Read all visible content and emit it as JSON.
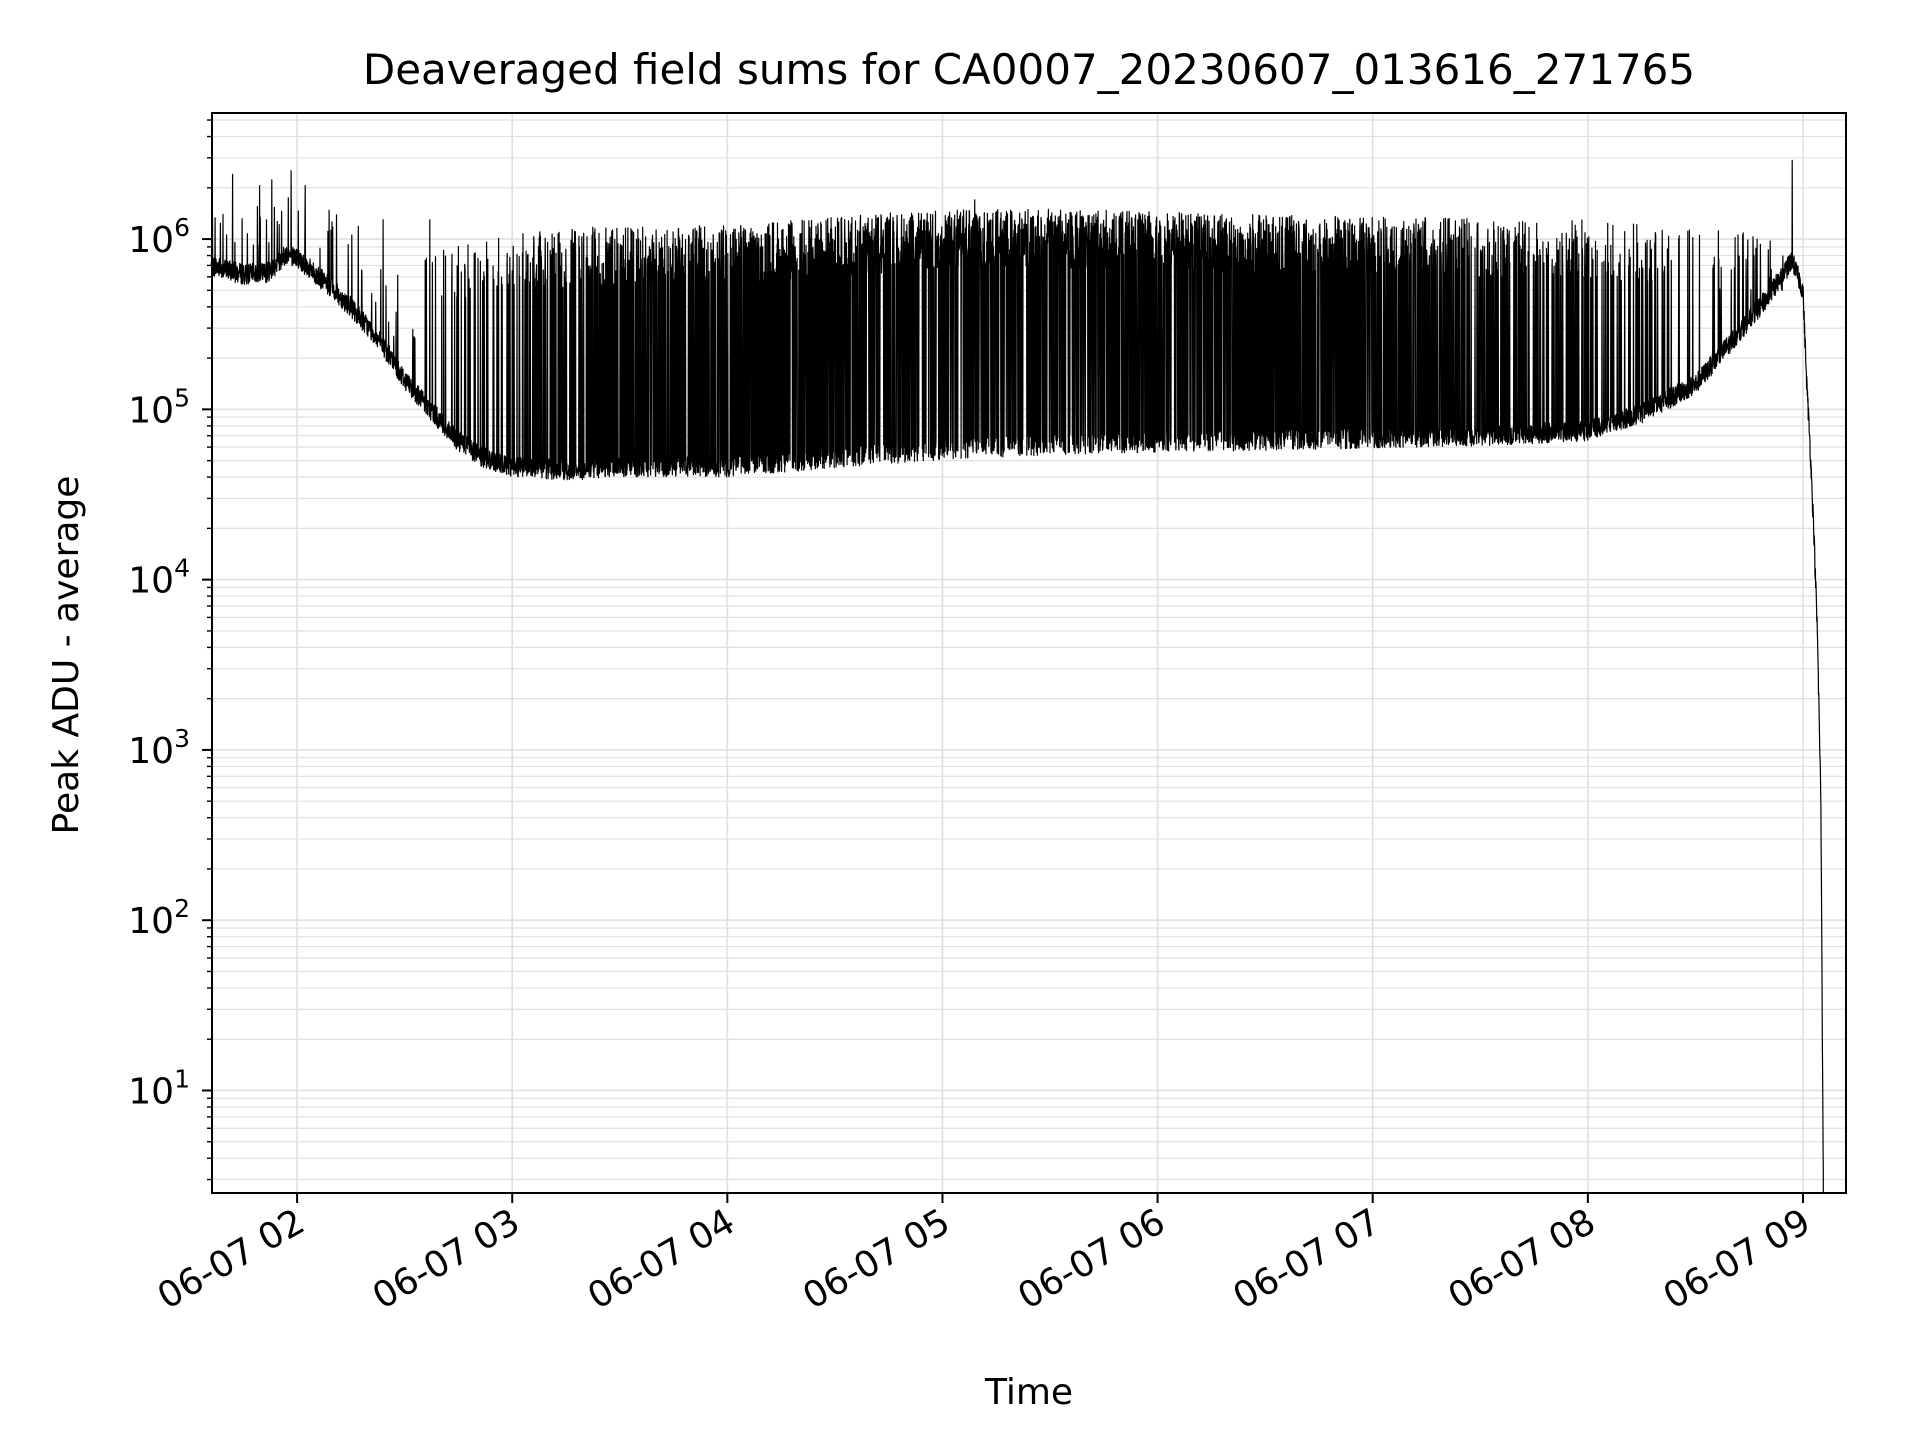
{
  "chart_data": {
    "type": "line",
    "title": "Deaveraged field sums for CA0007_20230607_013616_271765",
    "xlabel": "Time",
    "ylabel": "Peak ADU - average",
    "yscale": "log",
    "ylim": [
      2.5,
      5500000
    ],
    "xlim": [
      "2023-06-07 01:36:16",
      "2023-06-07 09:12:00"
    ],
    "grid": true,
    "line_color": "#000000",
    "grid_color": "#e0e0e0",
    "x_ticks": [
      {
        "t": "2023-06-07 02:00",
        "label": "06-07 02"
      },
      {
        "t": "2023-06-07 03:00",
        "label": "06-07 03"
      },
      {
        "t": "2023-06-07 04:00",
        "label": "06-07 04"
      },
      {
        "t": "2023-06-07 05:00",
        "label": "06-07 05"
      },
      {
        "t": "2023-06-07 06:00",
        "label": "06-07 06"
      },
      {
        "t": "2023-06-07 07:00",
        "label": "06-07 07"
      },
      {
        "t": "2023-06-07 08:00",
        "label": "06-07 08"
      },
      {
        "t": "2023-06-07 09:00",
        "label": "06-07 09"
      }
    ],
    "y_ticks": [
      {
        "value": 10,
        "base": "10",
        "exp": "1"
      },
      {
        "value": 100,
        "base": "10",
        "exp": "2"
      },
      {
        "value": 1000,
        "base": "10",
        "exp": "3"
      },
      {
        "value": 10000,
        "base": "10",
        "exp": "4"
      },
      {
        "value": 100000,
        "base": "10",
        "exp": "5"
      },
      {
        "value": 1000000,
        "base": "10",
        "exp": "6"
      }
    ],
    "series": [
      {
        "baseline": [
          [
            "2023-06-07 01:36",
            700000
          ],
          [
            "2023-06-07 01:45",
            620000
          ],
          [
            "2023-06-07 01:52",
            640000
          ],
          [
            "2023-06-07 01:57",
            820000
          ],
          [
            "2023-06-07 02:00",
            780000
          ],
          [
            "2023-06-07 02:08",
            550000
          ],
          [
            "2023-06-07 02:15",
            400000
          ],
          [
            "2023-06-07 02:22",
            270000
          ],
          [
            "2023-06-07 02:30",
            150000
          ],
          [
            "2023-06-07 02:38",
            95000
          ],
          [
            "2023-06-07 02:45",
            65000
          ],
          [
            "2023-06-07 02:52",
            52000
          ],
          [
            "2023-06-07 03:00",
            46000
          ],
          [
            "2023-06-07 03:15",
            44000
          ],
          [
            "2023-06-07 03:30",
            46000
          ],
          [
            "2023-06-07 04:00",
            46000
          ],
          [
            "2023-06-07 04:30",
            52000
          ],
          [
            "2023-06-07 05:00",
            58000
          ],
          [
            "2023-06-07 05:30",
            62000
          ],
          [
            "2023-06-07 06:00",
            64000
          ],
          [
            "2023-06-07 06:30",
            66000
          ],
          [
            "2023-06-07 07:00",
            68000
          ],
          [
            "2023-06-07 07:30",
            70000
          ],
          [
            "2023-06-07 08:00",
            75000
          ],
          [
            "2023-06-07 08:15",
            95000
          ],
          [
            "2023-06-07 08:30",
            140000
          ],
          [
            "2023-06-07 08:40",
            250000
          ],
          [
            "2023-06-07 08:50",
            450000
          ],
          [
            "2023-06-07 08:57",
            750000
          ],
          [
            "2023-06-07 09:00",
            500000
          ],
          [
            "2023-06-07 09:01",
            150000
          ],
          [
            "2023-06-07 09:02",
            60000
          ],
          [
            "2023-06-07 09:03",
            20000
          ],
          [
            "2023-06-07 09:04",
            5000
          ],
          [
            "2023-06-07 09:05",
            500
          ],
          [
            "2023-06-07 09:05:40",
            3
          ]
        ],
        "envelope": [
          [
            "2023-06-07 02:35",
            900000
          ],
          [
            "2023-06-07 03:00",
            1100000
          ],
          [
            "2023-06-07 03:30",
            1200000
          ],
          [
            "2023-06-07 04:00",
            1200000
          ],
          [
            "2023-06-07 04:30",
            1350000
          ],
          [
            "2023-06-07 05:00",
            1500000
          ],
          [
            "2023-06-07 05:30",
            1500000
          ],
          [
            "2023-06-07 06:00",
            1450000
          ],
          [
            "2023-06-07 07:00",
            1350000
          ],
          [
            "2023-06-07 08:00",
            1300000
          ],
          [
            "2023-06-07 08:30",
            1150000
          ],
          [
            "2023-06-07 08:55",
            1100000
          ]
        ],
        "spikes": [
          [
            "2023-06-07 01:42",
            2400000
          ],
          [
            "2023-06-07 02:24",
            1300000
          ],
          [
            "2023-06-07 02:37",
            1300000
          ],
          [
            "2023-06-07 05:09",
            1700000
          ],
          [
            "2023-06-07 08:57",
            2900000
          ]
        ]
      }
    ]
  }
}
